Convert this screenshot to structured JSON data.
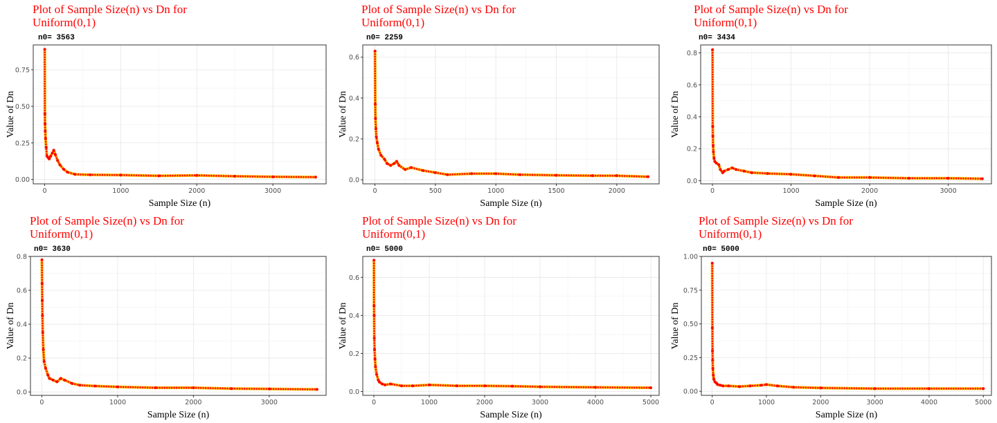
{
  "colors": {
    "title": "#ff0000",
    "line": "#ffb400",
    "points": "#ff0000"
  },
  "chart_data": [
    {
      "type": "line",
      "title": [
        "Plot of Sample Size(n) vs Dn for",
        " Uniform(0,1)"
      ],
      "subtitle": "n0=  3563",
      "xlabel": "Sample Size (n)",
      "ylabel": "Value of Dn",
      "xlim": [
        -150,
        3700
      ],
      "ylim": [
        -0.03,
        0.92
      ],
      "xticks": [
        0,
        1000,
        2000,
        3000
      ],
      "xtick_labels": [
        "0",
        "1000",
        "2000",
        "3000"
      ],
      "yticks": [
        0,
        0.25,
        0.5,
        0.75
      ],
      "ytick_labels": [
        "0.00",
        "0.25",
        "0.50",
        "0.75"
      ],
      "x": [
        1,
        3,
        5,
        8,
        12,
        20,
        30,
        45,
        60,
        80,
        100,
        120,
        140,
        170,
        200,
        250,
        300,
        400,
        600,
        1000,
        1500,
        2000,
        2500,
        3000,
        3563
      ],
      "y": [
        0.89,
        0.45,
        0.38,
        0.33,
        0.28,
        0.22,
        0.16,
        0.15,
        0.14,
        0.16,
        0.18,
        0.2,
        0.17,
        0.13,
        0.1,
        0.07,
        0.05,
        0.035,
        0.032,
        0.03,
        0.025,
        0.028,
        0.022,
        0.018,
        0.016
      ],
      "grid": true
    },
    {
      "type": "line",
      "title": [
        "Plot of Sample Size(n) vs Dn for",
        " Uniform(0,1)"
      ],
      "subtitle": "n0=  2259",
      "xlabel": "Sample Size (n)",
      "ylabel": "Value of Dn",
      "xlim": [
        -100,
        2350
      ],
      "ylim": [
        -0.02,
        0.66
      ],
      "xticks": [
        0,
        500,
        1000,
        1500,
        2000
      ],
      "xtick_labels": [
        "0",
        "500",
        "1000",
        "1500",
        "2000"
      ],
      "yticks": [
        0,
        0.2,
        0.4,
        0.6
      ],
      "ytick_labels": [
        "0.0",
        "0.2",
        "0.4",
        "0.6"
      ],
      "x": [
        1,
        3,
        5,
        8,
        12,
        20,
        30,
        50,
        80,
        100,
        130,
        160,
        180,
        200,
        250,
        300,
        400,
        500,
        600,
        800,
        1000,
        1200,
        1500,
        1800,
        2000,
        2259
      ],
      "y": [
        0.63,
        0.37,
        0.3,
        0.25,
        0.21,
        0.18,
        0.15,
        0.12,
        0.1,
        0.08,
        0.07,
        0.08,
        0.09,
        0.07,
        0.05,
        0.06,
        0.045,
        0.035,
        0.025,
        0.03,
        0.03,
        0.025,
        0.022,
        0.02,
        0.02,
        0.015
      ],
      "grid": true
    },
    {
      "type": "line",
      "title": [
        "Plot of Sample Size(n) vs Dn for",
        " Uniform(0,1)"
      ],
      "subtitle": "n0=  3434",
      "xlabel": "Sample Size (n)",
      "ylabel": "Value of Dn",
      "xlim": [
        -150,
        3550
      ],
      "ylim": [
        -0.02,
        0.85
      ],
      "xticks": [
        0,
        1000,
        2000,
        3000
      ],
      "xtick_labels": [
        "0",
        "1000",
        "2000",
        "3000"
      ],
      "yticks": [
        0,
        0.2,
        0.4,
        0.6,
        0.8
      ],
      "ytick_labels": [
        "0.0",
        "0.2",
        "0.4",
        "0.6",
        "0.8"
      ],
      "x": [
        1,
        3,
        5,
        8,
        12,
        20,
        30,
        50,
        80,
        100,
        130,
        150,
        200,
        250,
        300,
        400,
        500,
        700,
        1000,
        1300,
        1600,
        2000,
        2500,
        3000,
        3434
      ],
      "y": [
        0.82,
        0.34,
        0.28,
        0.22,
        0.18,
        0.14,
        0.12,
        0.11,
        0.1,
        0.07,
        0.05,
        0.06,
        0.07,
        0.08,
        0.07,
        0.06,
        0.05,
        0.045,
        0.04,
        0.03,
        0.02,
        0.02,
        0.015,
        0.015,
        0.012
      ],
      "grid": true
    },
    {
      "type": "line",
      "title": [
        "Plot of Sample Size(n) vs Dn for",
        " Uniform(0,1)"
      ],
      "subtitle": "n0=  3630",
      "xlabel": "Sample Size (n)",
      "ylabel": "Value of Dn",
      "xlim": [
        -150,
        3750
      ],
      "ylim": [
        -0.02,
        0.8
      ],
      "xticks": [
        0,
        1000,
        2000,
        3000
      ],
      "xtick_labels": [
        "0",
        "1000",
        "2000",
        "3000"
      ],
      "yticks": [
        0,
        0.2,
        0.4,
        0.6,
        0.8
      ],
      "ytick_labels": [
        "0.0",
        "0.2",
        "0.4",
        "0.6",
        "0.8"
      ],
      "x": [
        1,
        3,
        5,
        8,
        12,
        20,
        30,
        50,
        80,
        100,
        150,
        200,
        250,
        300,
        400,
        500,
        700,
        1000,
        1500,
        2000,
        2500,
        3000,
        3630
      ],
      "y": [
        0.78,
        0.64,
        0.54,
        0.45,
        0.35,
        0.25,
        0.18,
        0.14,
        0.1,
        0.08,
        0.07,
        0.06,
        0.08,
        0.07,
        0.05,
        0.04,
        0.035,
        0.03,
        0.025,
        0.025,
        0.02,
        0.018,
        0.015
      ],
      "grid": true
    },
    {
      "type": "line",
      "title": [
        "Plot of Sample Size(n) vs Dn for",
        " Uniform(0,1)"
      ],
      "subtitle": "n0=  5000",
      "xlabel": "Sample Size (n)",
      "ylabel": "Value of Dn",
      "xlim": [
        -200,
        5150
      ],
      "ylim": [
        -0.02,
        0.71
      ],
      "xticks": [
        0,
        1000,
        2000,
        3000,
        4000,
        5000
      ],
      "xtick_labels": [
        "0",
        "1000",
        "2000",
        "3000",
        "4000",
        "5000"
      ],
      "yticks": [
        0,
        0.2,
        0.4,
        0.6
      ],
      "ytick_labels": [
        "0.0",
        "0.2",
        "0.4",
        "0.6"
      ],
      "x": [
        1,
        3,
        5,
        8,
        12,
        20,
        30,
        50,
        80,
        100,
        150,
        200,
        300,
        500,
        700,
        1000,
        1500,
        2000,
        2500,
        3000,
        4000,
        5000
      ],
      "y": [
        0.69,
        0.45,
        0.4,
        0.28,
        0.22,
        0.17,
        0.13,
        0.09,
        0.06,
        0.05,
        0.04,
        0.035,
        0.04,
        0.03,
        0.03,
        0.035,
        0.03,
        0.03,
        0.028,
        0.025,
        0.022,
        0.02
      ],
      "grid": true
    },
    {
      "type": "line",
      "title": [
        "Plot of Sample Size(n) vs Dn for",
        " Uniform(0,1)"
      ],
      "subtitle": "n0=  5000",
      "xlabel": "Sample Size (n)",
      "ylabel": "Value of Dn",
      "xlim": [
        -200,
        5150
      ],
      "ylim": [
        -0.03,
        1.0
      ],
      "xticks": [
        0,
        1000,
        2000,
        3000,
        4000,
        5000
      ],
      "xtick_labels": [
        "0",
        "1000",
        "2000",
        "3000",
        "4000",
        "5000"
      ],
      "yticks": [
        0,
        0.25,
        0.5,
        0.75,
        1.0
      ],
      "ytick_labels": [
        "0.00",
        "0.25",
        "0.50",
        "0.75",
        "1.00"
      ],
      "x": [
        1,
        3,
        5,
        8,
        12,
        20,
        30,
        50,
        80,
        100,
        150,
        200,
        300,
        500,
        700,
        900,
        1000,
        1200,
        1500,
        2000,
        3000,
        4000,
        5000
      ],
      "y": [
        0.95,
        0.47,
        0.3,
        0.23,
        0.17,
        0.12,
        0.09,
        0.07,
        0.06,
        0.05,
        0.045,
        0.04,
        0.04,
        0.035,
        0.04,
        0.045,
        0.05,
        0.04,
        0.03,
        0.025,
        0.02,
        0.02,
        0.02
      ],
      "grid": true
    }
  ]
}
